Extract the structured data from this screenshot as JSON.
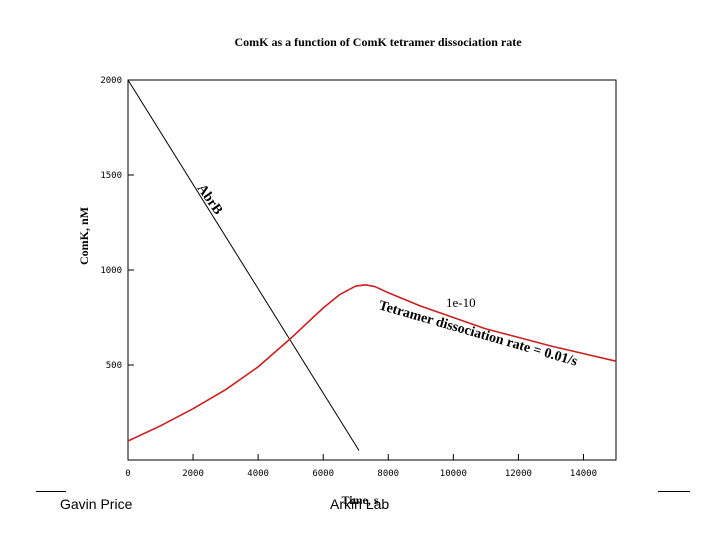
{
  "chart_data": {
    "type": "line",
    "title": "ComK as a function of ComK tetramer dissociation rate",
    "xlabel": "Time, s",
    "ylabel": "ComK, nM",
    "xlim": [
      0,
      15000
    ],
    "ylim": [
      0,
      2000
    ],
    "x_ticks": [
      "0",
      "2000",
      "4000",
      "6000",
      "8000",
      "10000",
      "12000",
      "14000"
    ],
    "y_ticks": [
      "500",
      "1000",
      "1500",
      "2000"
    ],
    "grid": false,
    "series": [
      {
        "name": "AbrB",
        "color": "#000000",
        "x": [
          0,
          7100
        ],
        "y": [
          2000,
          50
        ]
      },
      {
        "name": "Tetramer dissociation rate = 0.01/s",
        "color": "#cc1f1f",
        "x": [
          0,
          1000,
          2000,
          3000,
          4000,
          5000,
          5500,
          6000,
          6500,
          7000,
          7300,
          7600,
          8000,
          9000,
          10000,
          11000,
          12000,
          13000,
          14000,
          15000
        ],
        "y": [
          100,
          180,
          270,
          370,
          490,
          640,
          720,
          800,
          870,
          915,
          922,
          912,
          880,
          810,
          750,
          690,
          645,
          600,
          560,
          520
        ]
      }
    ],
    "annotations": {
      "abrb": "AbrB",
      "small": "1e-10",
      "rate": "Tetramer dissociation rate = 0.01/s"
    }
  },
  "footer": {
    "left": "Gavin Price",
    "center": "Arkin Lab"
  }
}
